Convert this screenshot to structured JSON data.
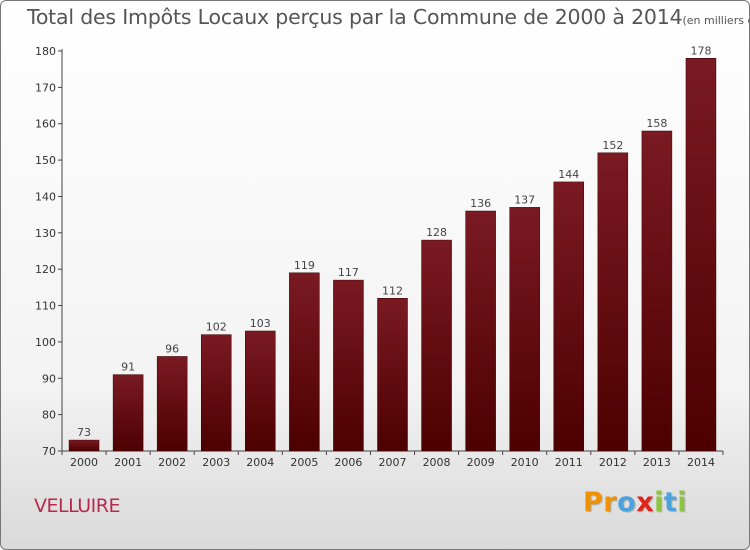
{
  "header": {
    "title": "Total des Impôts Locaux perçus par la Commune de 2000 à 2014",
    "unit": "(en milliers d'€)"
  },
  "commune_name": "VELLUIRE",
  "logo": {
    "letters": [
      "P",
      "r",
      "o",
      "x",
      "i",
      "t",
      "i"
    ],
    "colors": [
      "#f29100",
      "#f29100",
      "#4aa3df",
      "#e2231a",
      "#8cc63f",
      "#4aa3df",
      "#8cc63f"
    ]
  },
  "colors": {
    "bar_top": "#7a1a22",
    "bar_bottom": "#4d0000"
  },
  "chart_data": {
    "type": "bar",
    "title": "Total des Impôts Locaux perçus par la Commune de 2000 à 2014",
    "xlabel": "",
    "ylabel": "",
    "categories": [
      "2000",
      "2001",
      "2002",
      "2003",
      "2004",
      "2005",
      "2006",
      "2007",
      "2008",
      "2009",
      "2010",
      "2011",
      "2012",
      "2013",
      "2014"
    ],
    "values": [
      73,
      91,
      96,
      102,
      103,
      119,
      117,
      112,
      128,
      136,
      137,
      144,
      152,
      158,
      178
    ],
    "ylim": [
      70,
      180
    ],
    "yticks": [
      70,
      80,
      90,
      100,
      110,
      120,
      130,
      140,
      150,
      160,
      170,
      180
    ],
    "grid": false,
    "legend": "none"
  }
}
